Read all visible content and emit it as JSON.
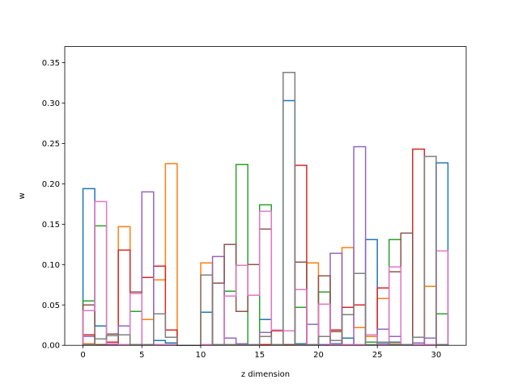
{
  "chart_data": {
    "type": "step-histogram",
    "xlabel": "z dimension",
    "ylabel": "w",
    "xlim": [
      -1.55,
      32.55
    ],
    "ylim": [
      0,
      0.37
    ],
    "xticks": [
      0,
      5,
      10,
      15,
      20,
      25,
      30
    ],
    "yticks": [
      0.0,
      0.05,
      0.1,
      0.15,
      0.2,
      0.25,
      0.3,
      0.35
    ],
    "bin_edges": [
      0,
      1,
      2,
      3,
      4,
      5,
      6,
      7,
      8,
      9,
      10,
      11,
      12,
      13,
      14,
      15,
      16,
      17,
      18,
      19,
      20,
      21,
      22,
      23,
      24,
      25,
      26,
      27,
      28,
      29,
      30,
      31
    ],
    "series": [
      {
        "color": "#1f77b4",
        "values": [
          0.194,
          0.024,
          0.001,
          0.001,
          0.001,
          0.001,
          0.006,
          0.003,
          0,
          0,
          0.041,
          0.001,
          0.001,
          0.001,
          0.001,
          0.032,
          0.001,
          0.303,
          0.002,
          0.001,
          0.001,
          0.002,
          0.009,
          0.001,
          0.131,
          0.002,
          0.004,
          0.001,
          0.001,
          0.001,
          0.226
        ]
      },
      {
        "color": "#ff7f0e",
        "values": [
          0.002,
          0.001,
          0.001,
          0.147,
          0.001,
          0.032,
          0.081,
          0.225,
          0,
          0,
          0.102,
          0.001,
          0.001,
          0.001,
          0.001,
          0.001,
          0.001,
          0.001,
          0.001,
          0.102,
          0.001,
          0.001,
          0.121,
          0.022,
          0.011,
          0.058,
          0.002,
          0.001,
          0.001,
          0.073,
          0.001
        ]
      },
      {
        "color": "#2ca02c",
        "values": [
          0.055,
          0.148,
          0.002,
          0.001,
          0.042,
          0.001,
          0.001,
          0.001,
          0,
          0,
          0.001,
          0.001,
          0.067,
          0.224,
          0.001,
          0.174,
          0.001,
          0.001,
          0.047,
          0.001,
          0.066,
          0.001,
          0.001,
          0.001,
          0.004,
          0.001,
          0.131,
          0.001,
          0.001,
          0.001,
          0.039
        ]
      },
      {
        "color": "#d62728",
        "values": [
          0.013,
          0.001,
          0.004,
          0.118,
          0.066,
          0.084,
          0.098,
          0.019,
          0,
          0,
          0.001,
          0.001,
          0.001,
          0.001,
          0.001,
          0.001,
          0.018,
          0.001,
          0.223,
          0.001,
          0.001,
          0.019,
          0.047,
          0.05,
          0.001,
          0.071,
          0.001,
          0.001,
          0.243,
          0.001,
          0.001
        ]
      },
      {
        "color": "#9467bd",
        "values": [
          0.011,
          0.001,
          0.001,
          0.024,
          0.001,
          0.19,
          0.001,
          0.001,
          0,
          0,
          0.001,
          0.11,
          0.009,
          0.002,
          0.001,
          0.016,
          0.001,
          0.001,
          0.001,
          0.026,
          0.001,
          0.114,
          0.001,
          0.246,
          0.001,
          0.02,
          0.011,
          0.001,
          0.003,
          0.009,
          0.001
        ]
      },
      {
        "color": "#8c564b",
        "values": [
          0.05,
          0.001,
          0.014,
          0.001,
          0.066,
          0.001,
          0.001,
          0.001,
          0,
          0,
          0.001,
          0.077,
          0.125,
          0.042,
          0.1,
          0.144,
          0.001,
          0.001,
          0.103,
          0.001,
          0.086,
          0.017,
          0.001,
          0.001,
          0.001,
          0.001,
          0.091,
          0.139,
          0.001,
          0.001,
          0.001
        ]
      },
      {
        "color": "#e377c2",
        "values": [
          0.043,
          0.178,
          0.002,
          0.001,
          0.064,
          0.001,
          0.001,
          0.001,
          0,
          0,
          0.001,
          0.001,
          0.061,
          0.099,
          0.062,
          0.166,
          0.019,
          0.018,
          0.069,
          0.001,
          0.051,
          0.001,
          0.001,
          0.001,
          0.013,
          0.001,
          0.097,
          0.001,
          0.001,
          0.001,
          0.117
        ]
      },
      {
        "color": "#7f7f7f",
        "values": [
          0.001,
          0.008,
          0.012,
          0.013,
          0.001,
          0.001,
          0.039,
          0.01,
          0,
          0,
          0.087,
          0.001,
          0.001,
          0.001,
          0.001,
          0.011,
          0.001,
          0.338,
          0.001,
          0.001,
          0.011,
          0.006,
          0.038,
          0.089,
          0.001,
          0.004,
          0.001,
          0.001,
          0.01,
          0.234,
          0.001
        ]
      }
    ]
  }
}
